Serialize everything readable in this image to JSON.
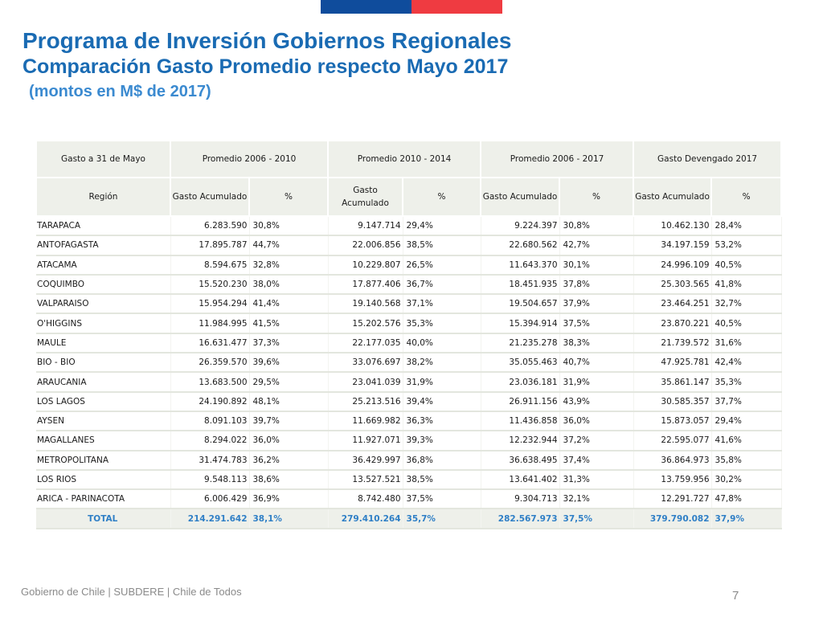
{
  "colors": {
    "flag_blue": "#0f4c9c",
    "flag_red": "#ef3b41",
    "title": "#1a6bb3",
    "total_text": "#2f7fc6",
    "header_bg": "#eef0ea"
  },
  "title": "Programa de Inversión Gobiernos Regionales",
  "subtitle": "Comparación Gasto Promedio respecto Mayo 2017",
  "note": "(montos en M$ de 2017)",
  "table": {
    "group_headers": [
      "Gasto a 31 de Mayo",
      "Promedio 2006 - 2010",
      "Promedio 2010 - 2014",
      "Promedio 2006 - 2017",
      "Gasto Devengado 2017"
    ],
    "sub_headers": [
      "Región",
      "Gasto Acumulado",
      "%",
      "Gasto Acumulado",
      "%",
      "Gasto Acumulado",
      "%",
      "Gasto Acumulado",
      "%"
    ],
    "rows": [
      [
        "TARAPACA",
        "6.283.590",
        "30,8%",
        "9.147.714",
        "29,4%",
        "9.224.397",
        "30,8%",
        "10.462.130",
        "28,4%"
      ],
      [
        "ANTOFAGASTA",
        "17.895.787",
        "44,7%",
        "22.006.856",
        "38,5%",
        "22.680.562",
        "42,7%",
        "34.197.159",
        "53,2%"
      ],
      [
        "ATACAMA",
        "8.594.675",
        "32,8%",
        "10.229.807",
        "26,5%",
        "11.643.370",
        "30,1%",
        "24.996.109",
        "40,5%"
      ],
      [
        "COQUIMBO",
        "15.520.230",
        "38,0%",
        "17.877.406",
        "36,7%",
        "18.451.935",
        "37,8%",
        "25.303.565",
        "41,8%"
      ],
      [
        "VALPARAISO",
        "15.954.294",
        "41,4%",
        "19.140.568",
        "37,1%",
        "19.504.657",
        "37,9%",
        "23.464.251",
        "32,7%"
      ],
      [
        "O'HIGGINS",
        "11.984.995",
        "41,5%",
        "15.202.576",
        "35,3%",
        "15.394.914",
        "37,5%",
        "23.870.221",
        "40,5%"
      ],
      [
        "MAULE",
        "16.631.477",
        "37,3%",
        "22.177.035",
        "40,0%",
        "21.235.278",
        "38,3%",
        "21.739.572",
        "31,6%"
      ],
      [
        "BIO - BIO",
        "26.359.570",
        "39,6%",
        "33.076.697",
        "38,2%",
        "35.055.463",
        "40,7%",
        "47.925.781",
        "42,4%"
      ],
      [
        "ARAUCANIA",
        "13.683.500",
        "29,5%",
        "23.041.039",
        "31,9%",
        "23.036.181",
        "31,9%",
        "35.861.147",
        "35,3%"
      ],
      [
        "LOS LAGOS",
        "24.190.892",
        "48,1%",
        "25.213.516",
        "39,4%",
        "26.911.156",
        "43,9%",
        "30.585.357",
        "37,7%"
      ],
      [
        "AYSEN",
        "8.091.103",
        "39,7%",
        "11.669.982",
        "36,3%",
        "11.436.858",
        "36,0%",
        "15.873.057",
        "29,4%"
      ],
      [
        "MAGALLANES",
        "8.294.022",
        "36,0%",
        "11.927.071",
        "39,3%",
        "12.232.944",
        "37,2%",
        "22.595.077",
        "41,6%"
      ],
      [
        "METROPOLITANA",
        "31.474.783",
        "36,2%",
        "36.429.997",
        "36,8%",
        "36.638.495",
        "37,4%",
        "36.864.973",
        "35,8%"
      ],
      [
        "LOS RIOS",
        "9.548.113",
        "38,6%",
        "13.527.521",
        "38,5%",
        "13.641.402",
        "31,3%",
        "13.759.956",
        "30,2%"
      ],
      [
        "ARICA - PARINACOTA",
        "6.006.429",
        "36,9%",
        "8.742.480",
        "37,5%",
        "9.304.713",
        "32,1%",
        "12.291.727",
        "47,8%"
      ]
    ],
    "total": [
      "TOTAL",
      "214.291.642",
      "38,1%",
      "279.410.264",
      "35,7%",
      "282.567.973",
      "37,5%",
      "379.790.082",
      "37,9%"
    ]
  },
  "footer": {
    "text": "Gobierno de Chile | SUBDERE | Chile de Todos",
    "page_number": "7"
  }
}
